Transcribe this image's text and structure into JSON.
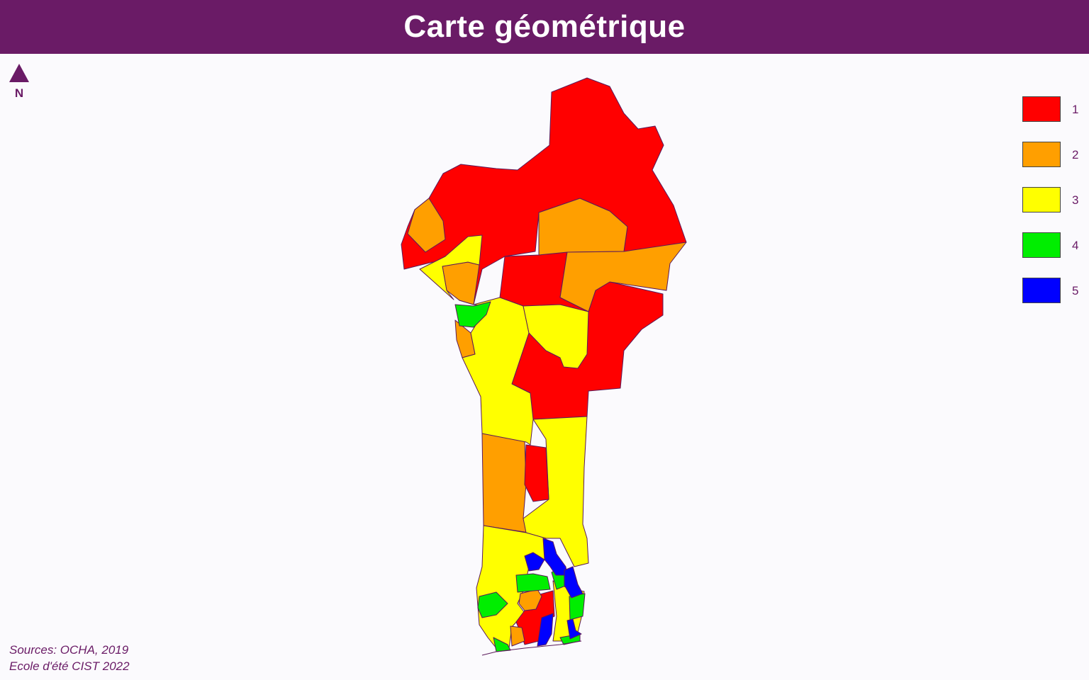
{
  "title": "Carte géométrique",
  "north_label": "N",
  "legend": {
    "items": [
      {
        "label": "1",
        "color": "#ff0000"
      },
      {
        "label": "2",
        "color": "#ff9f00"
      },
      {
        "label": "3",
        "color": "#ffff00"
      },
      {
        "label": "4",
        "color": "#00ee00"
      },
      {
        "label": "5",
        "color": "#0000ff"
      }
    ]
  },
  "sources": {
    "line1": "Sources: OCHA, 2019",
    "line2": "Ecole d'été CIST 2022"
  },
  "colors": {
    "title_background": "#6a1b66",
    "text": "#6a1b66",
    "border": "#5a1a5a"
  }
}
